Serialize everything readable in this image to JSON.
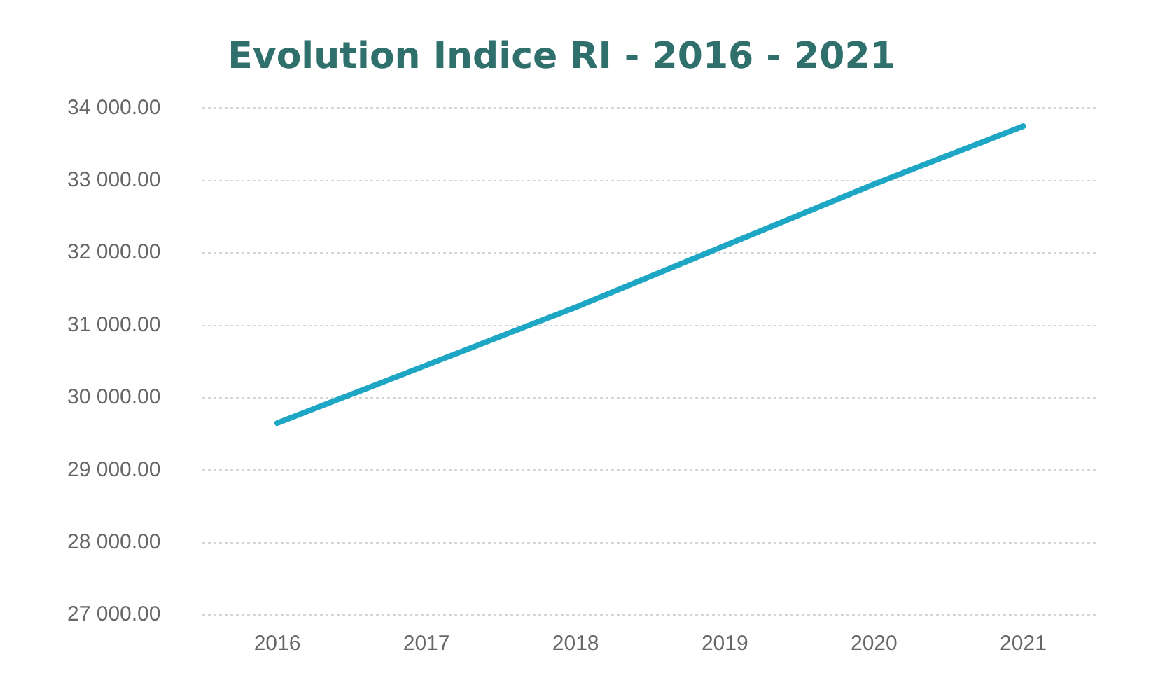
{
  "chart_data": {
    "type": "line",
    "title": "Evolution Indice RI - 2016 - 2021",
    "categories": [
      "2016",
      "2017",
      "2018",
      "2019",
      "2020",
      "2021"
    ],
    "series": [
      {
        "color": "#1ea7c5",
        "values": [
          29650,
          30450,
          31250,
          32100,
          32950,
          33750
        ]
      }
    ],
    "ylim": [
      27000,
      34000
    ],
    "yticks": [
      {
        "value": 27000,
        "label": "27 000.00"
      },
      {
        "value": 28000,
        "label": "28 000.00"
      },
      {
        "value": 29000,
        "label": "29 000.00"
      },
      {
        "value": 30000,
        "label": "30 000.00"
      },
      {
        "value": 31000,
        "label": "31 000.00"
      },
      {
        "value": 32000,
        "label": "32 000.00"
      },
      {
        "value": 33000,
        "label": "33 000.00"
      },
      {
        "value": 34000,
        "label": "34 000.00"
      }
    ],
    "grid": "y",
    "marker": "none",
    "line_style": "solid",
    "legend": false
  }
}
